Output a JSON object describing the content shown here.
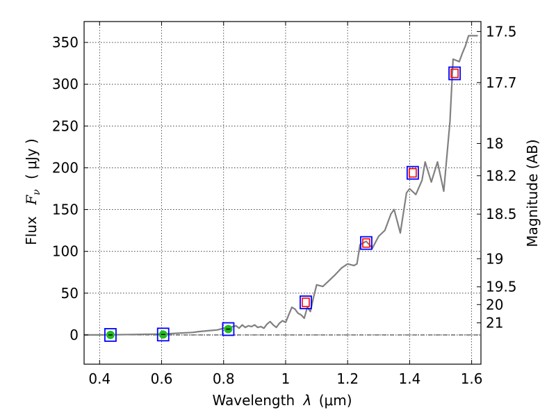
{
  "chart_data": {
    "type": "line",
    "xlabel_prefix": "Wavelength",
    "xlabel_symbol": "λ",
    "xlabel_unit": "(μm)",
    "ylabel_prefix": "Flux",
    "ylabel_symbol": "F",
    "ylabel_sub": "ν",
    "ylabel_unit": "( μJy )",
    "ylabel_right": "Magnitude (AB)",
    "xlim": [
      0.35,
      1.63
    ],
    "ylim": [
      -35,
      375
    ],
    "xticks": [
      0.4,
      0.6,
      0.8,
      1.0,
      1.2,
      1.4,
      1.6
    ],
    "xtick_labels": [
      "0.4",
      "0.6",
      "0.8",
      "1",
      "1.2",
      "1.4",
      "1.6"
    ],
    "yticks": [
      0,
      50,
      100,
      150,
      200,
      250,
      300,
      350
    ],
    "ytick_labels": [
      "0",
      "50",
      "100",
      "150",
      "200",
      "250",
      "300",
      "350"
    ],
    "mag_ticks": [
      17.5,
      17.7,
      18,
      18.2,
      18.5,
      19,
      19.5,
      20,
      21
    ],
    "mag_tick_labels": [
      "17.5",
      "17.7",
      "18",
      "18.2",
      "18.5",
      "19",
      "19.5",
      "20",
      "21"
    ],
    "grid": true,
    "colors": {
      "model": "#808080",
      "box_blue": "#0000ff",
      "box_red": "#ff0000",
      "detection_green": "#22bb22",
      "zero_line": "#000000"
    },
    "series": [
      {
        "name": "model-spectrum",
        "style": "line",
        "x": [
          0.35,
          0.4,
          0.45,
          0.5,
          0.55,
          0.6,
          0.65,
          0.7,
          0.72,
          0.75,
          0.78,
          0.8,
          0.82,
          0.84,
          0.85,
          0.86,
          0.87,
          0.88,
          0.89,
          0.9,
          0.91,
          0.92,
          0.93,
          0.94,
          0.95,
          0.96,
          0.97,
          0.98,
          0.99,
          1.0,
          1.01,
          1.02,
          1.03,
          1.04,
          1.05,
          1.06,
          1.07,
          1.08,
          1.09,
          1.1,
          1.12,
          1.14,
          1.16,
          1.18,
          1.2,
          1.22,
          1.23,
          1.24,
          1.26,
          1.28,
          1.3,
          1.32,
          1.34,
          1.35,
          1.37,
          1.39,
          1.4,
          1.42,
          1.44,
          1.45,
          1.47,
          1.49,
          1.51,
          1.53,
          1.54,
          1.56,
          1.57,
          1.58,
          1.59,
          1.6,
          1.62
        ],
        "y": [
          0,
          0,
          0.3,
          0.5,
          0.8,
          1,
          2,
          3,
          4,
          5,
          6,
          8,
          9,
          11,
          8,
          12,
          9,
          11,
          10,
          12,
          9,
          10,
          8,
          13,
          16,
          12,
          9,
          14,
          17,
          15,
          24,
          33,
          31,
          26,
          24,
          20,
          33,
          28,
          45,
          60,
          58,
          65,
          72,
          80,
          85,
          83,
          85,
          108,
          112,
          104,
          118,
          125,
          145,
          150,
          122,
          170,
          175,
          168,
          185,
          207,
          183,
          207,
          172,
          255,
          330,
          327,
          337,
          346,
          358,
          358,
          358
        ]
      },
      {
        "name": "photometry",
        "style": "markers",
        "x": [
          0.435,
          0.605,
          0.815,
          1.065,
          1.26,
          1.41,
          1.545
        ],
        "y": [
          0,
          0.5,
          7,
          39,
          110,
          194,
          313
        ],
        "kind": [
          "detection",
          "detection",
          "detection",
          "model",
          "model",
          "model",
          "model"
        ]
      }
    ]
  }
}
